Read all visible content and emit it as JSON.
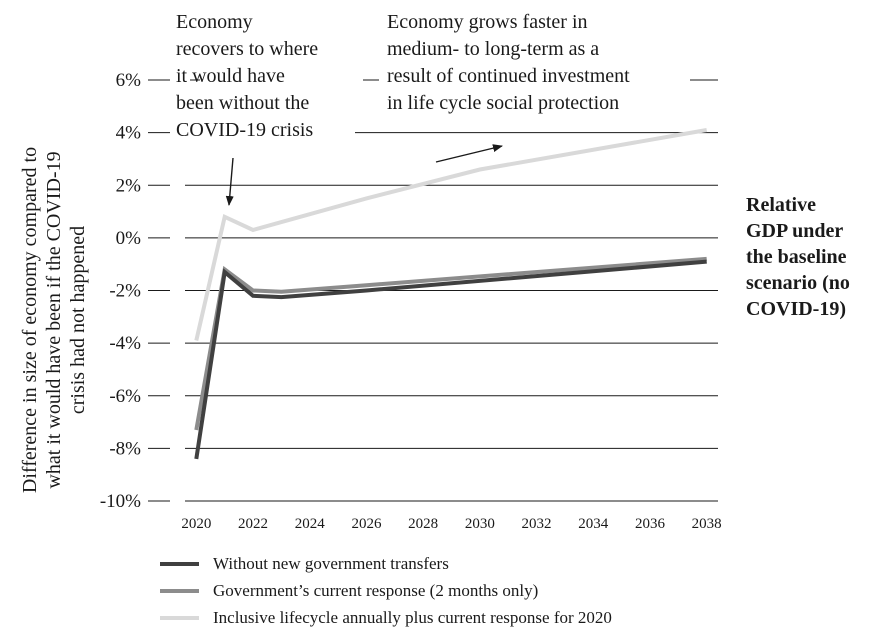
{
  "chart_data": {
    "type": "line",
    "title": "",
    "ylabel_lines": [
      "Difference in size of economy compared to",
      "what it would have been if the COVID-19",
      "crisis had not happened"
    ],
    "xlabel": "",
    "x_ticks": [
      "2020",
      "2022",
      "2024",
      "2026",
      "2028",
      "2030",
      "2032",
      "2034",
      "2036",
      "2038"
    ],
    "y_ticks": [
      {
        "value": 6,
        "label": "6%"
      },
      {
        "value": 4,
        "label": "4%"
      },
      {
        "value": 2,
        "label": "2%"
      },
      {
        "value": 0,
        "label": "0%"
      },
      {
        "value": -2,
        "label": "-2%"
      },
      {
        "value": -4,
        "label": "-4%"
      },
      {
        "value": -6,
        "label": "-6%"
      },
      {
        "value": -8,
        "label": "-8%"
      },
      {
        "value": -10,
        "label": "-10%"
      }
    ],
    "xlim": [
      2019.6,
      2038.4
    ],
    "ylim": [
      -10,
      6
    ],
    "grid": true,
    "legend_position": "bottom",
    "series": [
      {
        "name": "Without new government transfers",
        "color": "#404040",
        "width": 4,
        "points": [
          [
            2020,
            -8.4
          ],
          [
            2021,
            -1.3
          ],
          [
            2022,
            -2.2
          ],
          [
            2023,
            -2.25
          ],
          [
            2026,
            -2.0
          ],
          [
            2038,
            -0.9
          ]
        ]
      },
      {
        "name": "Government’s current response (2 months only)",
        "color": "#8c8c8c",
        "width": 4,
        "points": [
          [
            2020,
            -7.3
          ],
          [
            2021,
            -1.2
          ],
          [
            2022,
            -2.0
          ],
          [
            2023,
            -2.05
          ],
          [
            2026,
            -1.8
          ],
          [
            2038,
            -0.8
          ]
        ]
      },
      {
        "name": "Inclusive lifecycle annually plus current response for 2020",
        "color": "#d9d9d9",
        "width": 4,
        "points": [
          [
            2020,
            -3.9
          ],
          [
            2021,
            0.8
          ],
          [
            2022,
            0.3
          ],
          [
            2023,
            0.6
          ],
          [
            2026,
            1.5
          ],
          [
            2030,
            2.6
          ],
          [
            2038,
            4.1
          ]
        ]
      }
    ],
    "annotations": [
      {
        "id": "recovery",
        "lines": [
          "Economy",
          "recovers to where",
          "it would have",
          "been without the",
          "COVID-19 crisis"
        ]
      },
      {
        "id": "growth",
        "lines": [
          "Economy grows faster in",
          "medium- to long-term as a",
          "result of continued investment",
          "in life cycle social protection"
        ]
      }
    ],
    "side_note_lines": [
      "Relative",
      "GDP under",
      "the baseline",
      "scenario (no",
      "COVID-19)"
    ]
  }
}
